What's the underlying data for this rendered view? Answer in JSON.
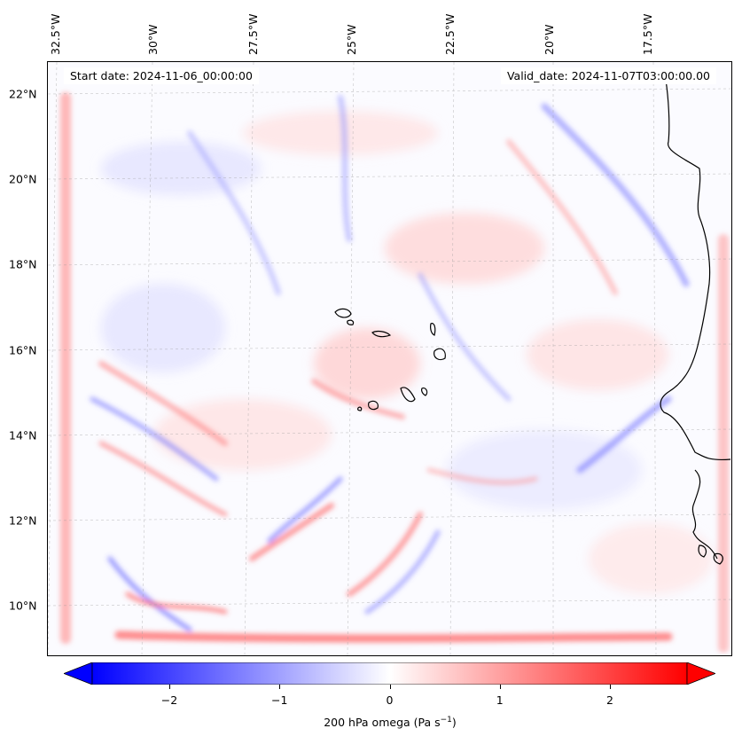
{
  "map": {
    "start_date": "Start date: 2024-11-06_00:00:00",
    "valid_date": "Valid_date: 2024-11-07T03:00:00.00",
    "lon_ticks": [
      "32.5°W",
      "30°W",
      "27.5°W",
      "25°W",
      "22.5°W",
      "20°W",
      "17.5°W"
    ],
    "lat_ticks": [
      "22°N",
      "20°N",
      "18°N",
      "16°N",
      "14°N",
      "12°N",
      "10°N"
    ],
    "field": "200 hPa omega",
    "colormap": "bwr",
    "colors": {
      "negative": "#0000ff",
      "zero": "#ffffff",
      "positive": "#ff0000",
      "coastline": "#000000",
      "gridline": "#999999"
    }
  },
  "colorbar": {
    "min": -2.7,
    "max": 2.7,
    "ticks": [
      "−2",
      "−1",
      "0",
      "1",
      "2"
    ],
    "tick_values": [
      -2,
      -1,
      0,
      1,
      2
    ],
    "extend": "both",
    "label_main": "200 hPa omega (Pa s",
    "label_sup": "−1",
    "label_end": ")"
  }
}
